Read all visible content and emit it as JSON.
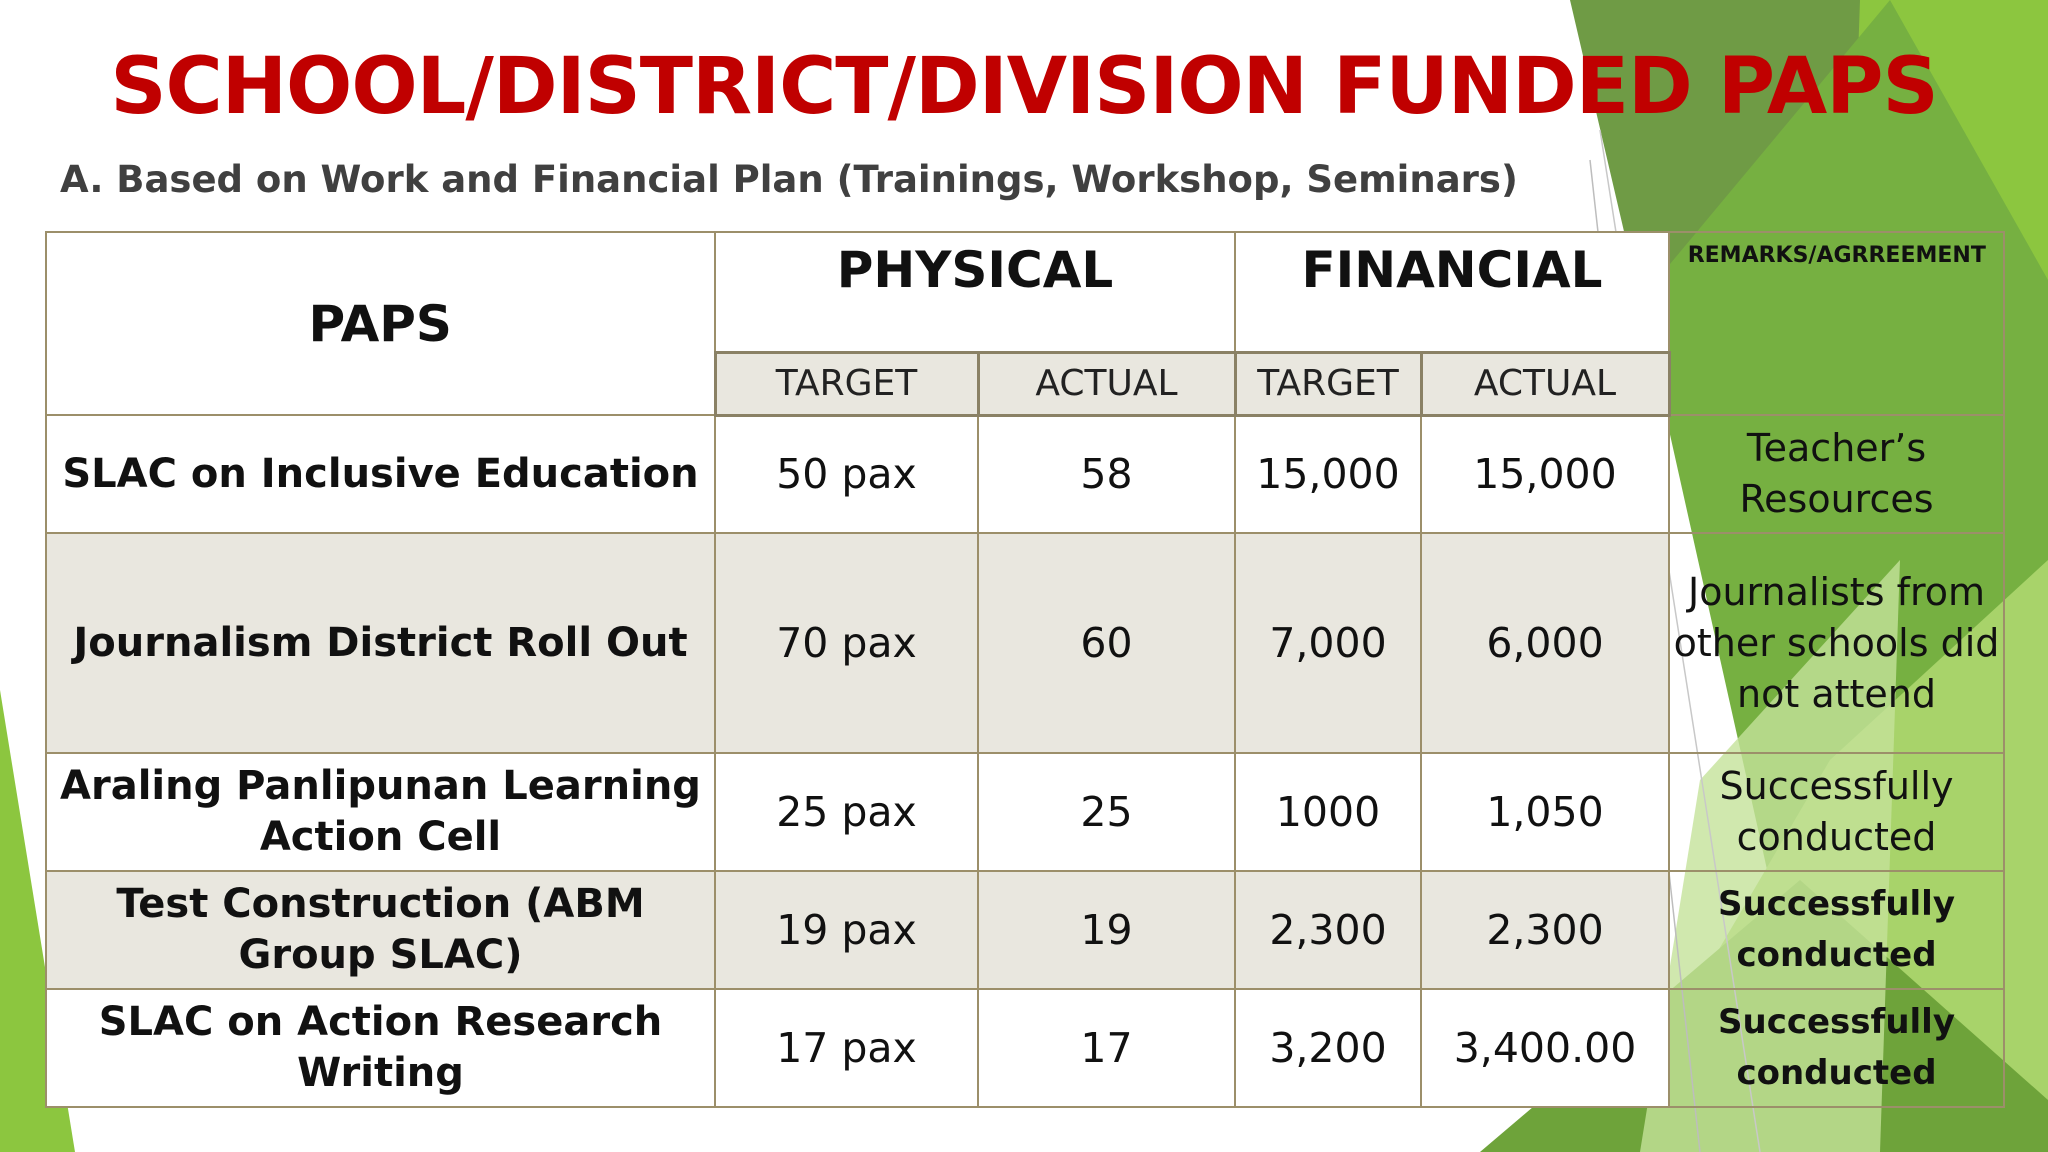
{
  "title": "SCHOOL/DISTRICT/DIVISION FUNDED PAPS",
  "subtitle": "A. Based on Work and Financial Plan (Trainings, Workshop, Seminars)",
  "table": {
    "col_paps": "PAPS",
    "col_physical": "PHYSICAL",
    "col_financial": "FINANCIAL",
    "col_remarks": "REMARKS/AGRREEMENT",
    "sub_headers": [
      "TARGET",
      "ACTUAL",
      "TARGET",
      "ACTUAL"
    ],
    "rows": [
      {
        "paps": "SLAC on Inclusive Education",
        "phys_target": "50 pax",
        "phys_actual": "58",
        "fin_target": "15,000",
        "fin_actual": "15,000",
        "remarks": "Teacher’s Resources"
      },
      {
        "paps": "Journalism District Roll Out",
        "phys_target": "70 pax",
        "phys_actual": "60",
        "fin_target": "7,000",
        "fin_actual": "6,000",
        "remarks": "Journalists from other schools did not attend"
      },
      {
        "paps": "Araling Panlipunan Learning Action Cell",
        "phys_target": "25 pax",
        "phys_actual": "25",
        "fin_target": "1000",
        "fin_actual": "1,050",
        "remarks": "Successfully conducted"
      },
      {
        "paps": "Test Construction (ABM Group SLAC)",
        "phys_target": "19 pax",
        "phys_actual": "19",
        "fin_target": "2,300",
        "fin_actual": "2,300",
        "remarks": "Successfully conducted"
      },
      {
        "paps": "SLAC on Action Research Writing",
        "phys_target": "17 pax",
        "phys_actual": "17",
        "fin_target": "3,200",
        "fin_actual": "3,400.00",
        "remarks": "Successfully conducted"
      }
    ]
  },
  "colors": {
    "title": "#c00000",
    "green_dark": "#6a9a3a",
    "green_light": "#8cc63f",
    "row_shade": "#e9e7df"
  }
}
